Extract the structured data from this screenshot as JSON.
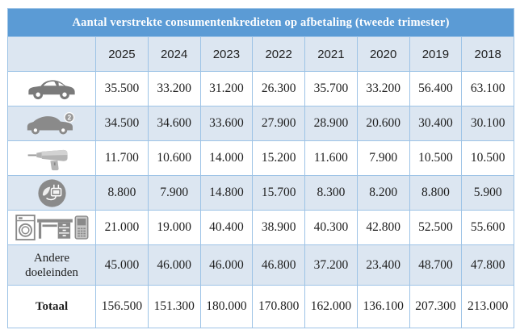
{
  "title": "Aantal verstrekte consumentenkredieten op afbetaling (tweede trimester)",
  "table": {
    "columns": [
      "2025",
      "2024",
      "2023",
      "2022",
      "2021",
      "2020",
      "2019",
      "2018"
    ],
    "rows": [
      {
        "name": "new-car",
        "label": "",
        "icons": [
          "new-car-icon"
        ],
        "values": [
          "35.500",
          "33.200",
          "31.200",
          "26.300",
          "35.700",
          "33.200",
          "56.400",
          "63.100"
        ]
      },
      {
        "name": "second-hand-car",
        "label": "",
        "icons": [
          "second-hand-car-icon"
        ],
        "values": [
          "34.500",
          "34.600",
          "33.600",
          "27.900",
          "28.900",
          "20.600",
          "30.400",
          "30.100"
        ]
      },
      {
        "name": "renovation-drill",
        "label": "",
        "icons": [
          "drill-icon"
        ],
        "values": [
          "11.700",
          "10.600",
          "14.000",
          "15.200",
          "11.600",
          "7.900",
          "10.500",
          "10.500"
        ]
      },
      {
        "name": "energy",
        "label": "",
        "icons": [
          "energy-plug-icon"
        ],
        "values": [
          "8.800",
          "7.900",
          "14.800",
          "15.700",
          "8.300",
          "8.200",
          "8.800",
          "5.900"
        ]
      },
      {
        "name": "household-goods",
        "label": "",
        "icons": [
          "washing-machine-icon",
          "desk-icon",
          "mobile-phone-icon"
        ],
        "values": [
          "21.000",
          "19.000",
          "40.400",
          "38.900",
          "40.300",
          "42.800",
          "52.500",
          "55.600"
        ]
      },
      {
        "name": "andere-doeleinden",
        "label": "Andere doeleinden",
        "icons": [],
        "tall": true,
        "values": [
          "45.000",
          "46.000",
          "46.000",
          "46.800",
          "37.200",
          "23.400",
          "48.700",
          "47.800"
        ]
      },
      {
        "name": "totaal",
        "label": "Totaal",
        "icons": [],
        "total": true,
        "values": [
          "156.500",
          "151.300",
          "180.000",
          "170.800",
          "162.000",
          "136.100",
          "207.300",
          "213.000"
        ]
      }
    ]
  },
  "colors": {
    "title-bg": "#5b9bd5",
    "band": "#dce6f1",
    "border": "#9dc3e6",
    "icon-gray": "#8a8a8a",
    "text": "#1f1f1f"
  },
  "chart_data": {
    "type": "table",
    "title": "Aantal verstrekte consumentenkredieten op afbetaling (tweede trimester)",
    "columns": [
      "2025",
      "2024",
      "2023",
      "2022",
      "2021",
      "2020",
      "2019",
      "2018"
    ],
    "rows": [
      {
        "row": "new-car-icon",
        "values": [
          35500,
          33200,
          31200,
          26300,
          35700,
          33200,
          56400,
          63100
        ]
      },
      {
        "row": "second-hand-car-icon",
        "values": [
          34500,
          34600,
          33600,
          27900,
          28900,
          20600,
          30400,
          30100
        ]
      },
      {
        "row": "drill-icon",
        "values": [
          11700,
          10600,
          14000,
          15200,
          11600,
          7900,
          10500,
          10500
        ]
      },
      {
        "row": "energy-plug-icon",
        "values": [
          8800,
          7900,
          14800,
          15700,
          8300,
          8200,
          8800,
          5900
        ]
      },
      {
        "row": "household-appliances-icons",
        "values": [
          21000,
          19000,
          40400,
          38900,
          40300,
          42800,
          52500,
          55600
        ]
      },
      {
        "row": "Andere doeleinden",
        "values": [
          45000,
          46000,
          46000,
          46800,
          37200,
          23400,
          48700,
          47800
        ]
      },
      {
        "row": "Totaal",
        "values": [
          156500,
          151300,
          180000,
          170800,
          162000,
          136100,
          207300,
          213000
        ]
      }
    ]
  }
}
